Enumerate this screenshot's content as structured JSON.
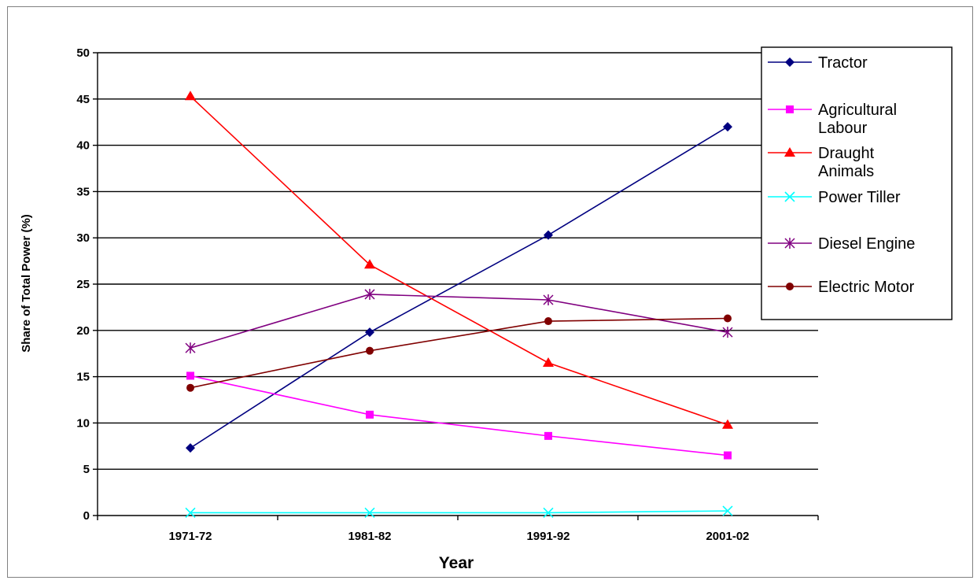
{
  "chart_data": {
    "type": "line",
    "title": "",
    "xlabel": "Year",
    "ylabel": "Share of Total Power (%)",
    "categories": [
      "1971-72",
      "1981-82",
      "1991-92",
      "2001-02"
    ],
    "ylim": [
      0,
      50
    ],
    "yticks": [
      0,
      5,
      10,
      15,
      20,
      25,
      30,
      35,
      40,
      45,
      50
    ],
    "grid": "horizontal",
    "legend_position": "right",
    "series": [
      {
        "name": "Tractor",
        "values": [
          7.3,
          19.8,
          30.3,
          42.0
        ],
        "color": "#000080",
        "marker": "diamond"
      },
      {
        "name": "Agricultural Labour",
        "legend_lines": [
          "Agricultural",
          "Labour"
        ],
        "values": [
          15.1,
          10.9,
          8.6,
          6.5
        ],
        "color": "#FF00FF",
        "marker": "square"
      },
      {
        "name": "Draught Animals",
        "legend_lines": [
          "Draught",
          "Animals"
        ],
        "values": [
          45.3,
          27.1,
          16.5,
          9.8
        ],
        "color": "#FF0000",
        "marker": "triangle"
      },
      {
        "name": "Power Tiller",
        "values": [
          0.3,
          0.3,
          0.3,
          0.5
        ],
        "color": "#00FFFF",
        "marker": "x"
      },
      {
        "name": "Diesel Engine",
        "values": [
          18.1,
          23.9,
          23.3,
          19.8
        ],
        "color": "#800080",
        "marker": "star"
      },
      {
        "name": "Electric Motor",
        "values": [
          13.8,
          17.8,
          21.0,
          21.3
        ],
        "color": "#800000",
        "marker": "circle"
      }
    ]
  }
}
